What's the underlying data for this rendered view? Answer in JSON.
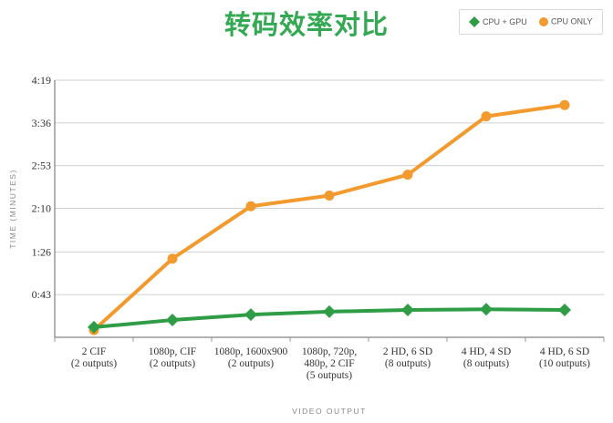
{
  "chart_data": {
    "type": "line",
    "title": "转码效率对比",
    "xlabel": "VIDEO OUTPUT",
    "ylabel": "TIME (MINUTES)",
    "y_ticks": [
      "0:43",
      "1:26",
      "2:10",
      "2:53",
      "3:36",
      "4:19"
    ],
    "y_tick_values": [
      0.717,
      1.433,
      2.167,
      2.883,
      3.6,
      4.317
    ],
    "ylim": [
      0,
      4.317
    ],
    "grid": true,
    "legend_position": "top-right",
    "categories": [
      [
        "2 CIF",
        "(2 outputs)"
      ],
      [
        "1080p, CIF",
        "(2 outputs)"
      ],
      [
        "1080p, 1600x900",
        "(2 outputs)"
      ],
      [
        "1080p, 720p,",
        "480p, 2 CIF",
        "(5 outputs)"
      ],
      [
        "2 HD, 6 SD",
        "(8 outputs)"
      ],
      [
        "4 HD, 4 SD",
        "(8 outputs)"
      ],
      [
        "4 HD, 6 SD",
        "(10 outputs)"
      ]
    ],
    "series": [
      {
        "name": "CPU + GPU",
        "color": "#2e9d45",
        "marker": "diamond",
        "values": [
          0.17,
          0.29,
          0.38,
          0.43,
          0.46,
          0.47,
          0.46
        ]
      },
      {
        "name": "CPU ONLY",
        "color": "#f39a2e",
        "marker": "circle",
        "values": [
          0.12,
          1.32,
          2.2,
          2.38,
          2.73,
          3.71,
          3.9
        ]
      }
    ]
  }
}
